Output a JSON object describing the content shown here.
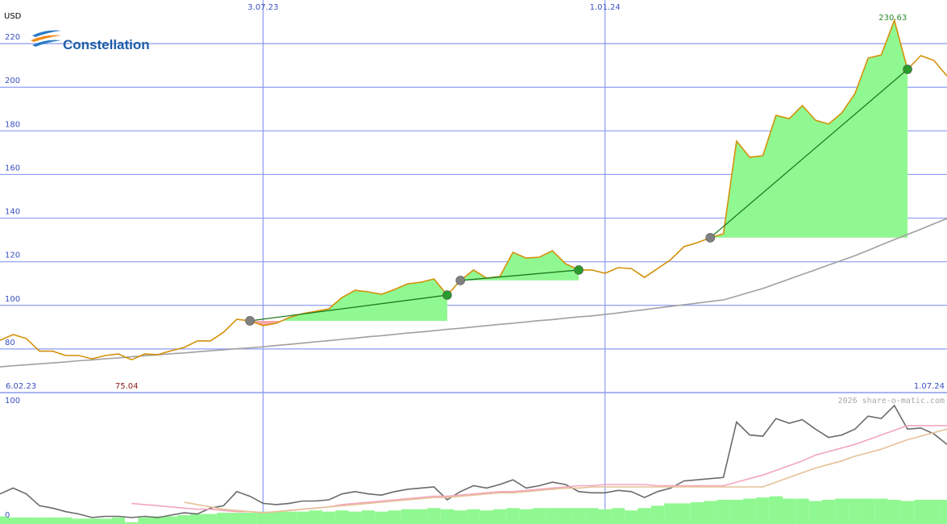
{
  "chart_data": [
    {
      "type": "line",
      "logo": "Constellation",
      "ylabel": "USD",
      "categories": [
        "6.02.23",
        null,
        null,
        null,
        null,
        null,
        null,
        null,
        null,
        null,
        null,
        null,
        null,
        null,
        null,
        null,
        null,
        null,
        null,
        null,
        "3.07.23",
        null,
        null,
        null,
        null,
        null,
        null,
        null,
        null,
        null,
        null,
        null,
        null,
        null,
        null,
        null,
        null,
        null,
        null,
        null,
        null,
        null,
        null,
        null,
        null,
        null,
        "1.01.24",
        null,
        null,
        null,
        null,
        null,
        null,
        null,
        null,
        null,
        null,
        null,
        null,
        null,
        null,
        null,
        null,
        null,
        null,
        null,
        null,
        null,
        null,
        null,
        null,
        null,
        "1.07.24"
      ],
      "ylim": [
        60,
        240
      ],
      "yticks": [
        80,
        100,
        120,
        140,
        160,
        180,
        200,
        220
      ],
      "grid": true,
      "grid_color": "#8c9cf0",
      "tick_color": "#3a4fc0",
      "gain_color": "#90f890",
      "loss_color": "#f7a8a8",
      "max_color": "#2a8a2a",
      "min_color": "#8b1a1a",
      "series": [
        {
          "color": "#d4900a",
          "values": [
            84,
            86.6,
            84.8,
            79,
            79,
            77,
            77,
            75.5,
            77,
            77.7,
            75.04,
            77.7,
            77.4,
            79.2,
            80.7,
            83.7,
            83.7,
            87.7,
            93.6,
            92.9,
            90.7,
            91.8,
            94.4,
            96.2,
            97.3,
            98.4,
            103.6,
            106.9,
            106.2,
            105.1,
            107.3,
            109.9,
            110.6,
            112.1,
            104.7,
            111.4,
            116.2,
            112.5,
            113.2,
            124.3,
            121.7,
            122.1,
            125,
            119.1,
            116.2,
            116.2,
            114.7,
            117.3,
            116.9,
            112.8,
            116.9,
            121,
            126.9,
            128.7,
            131,
            132.8,
            175.3,
            167.9,
            168.6,
            187.1,
            185.6,
            191.6,
            184.9,
            183.1,
            188.2,
            197.1,
            213.4,
            214.8,
            230.63,
            208.2,
            214.5,
            212.3,
            205.2
          ]
        },
        {
          "color": "#a0a0a0",
          "values": [
            71.8,
            72.3,
            72.7,
            73.2,
            73.6,
            74.1,
            74.6,
            75,
            75.5,
            75.9,
            76.4,
            76.9,
            77.3,
            77.8,
            78.2,
            78.7,
            79.2,
            79.6,
            80.1,
            80.5,
            81,
            81.6,
            82.1,
            82.7,
            83.3,
            83.8,
            84.4,
            85,
            85.6,
            86.1,
            86.7,
            87.3,
            87.8,
            88.4,
            89,
            89.5,
            90.1,
            90.7,
            91.3,
            91.8,
            92.4,
            93,
            93.5,
            94.1,
            94.7,
            95.2,
            95.8,
            96.5,
            97.3,
            98,
            98.8,
            99.5,
            100.3,
            101,
            101.8,
            102.5,
            104.2,
            106,
            107.7,
            109.9,
            112,
            114.2,
            116.3,
            118.5,
            120.6,
            122.8,
            125.2,
            127.7,
            130.1,
            132.5,
            134.9,
            137.4,
            139.8
          ]
        },
        {
          "color": "#808080",
          "role": "entry",
          "values": [
            null,
            null,
            null,
            null,
            null,
            null,
            null,
            null,
            null,
            null,
            null,
            null,
            null,
            null,
            null,
            null,
            null,
            null,
            null,
            92.9,
            null,
            null,
            null,
            null,
            null,
            null,
            null,
            null,
            null,
            null,
            null,
            null,
            null,
            null,
            null,
            111.4,
            null,
            null,
            null,
            null,
            null,
            null,
            null,
            null,
            null,
            null,
            null,
            null,
            null,
            null,
            null,
            null,
            null,
            null,
            131,
            null,
            null,
            null,
            null,
            null,
            null,
            null,
            null,
            null,
            null,
            null,
            null,
            null,
            null,
            null,
            null,
            null,
            null
          ]
        },
        {
          "color": "#2a9a2a",
          "role": "exit",
          "values": [
            null,
            null,
            null,
            null,
            null,
            null,
            null,
            null,
            null,
            null,
            null,
            null,
            null,
            null,
            null,
            null,
            null,
            null,
            null,
            null,
            null,
            null,
            null,
            null,
            null,
            null,
            null,
            null,
            null,
            null,
            null,
            null,
            null,
            null,
            104.7,
            null,
            null,
            null,
            null,
            null,
            null,
            null,
            null,
            null,
            116.2,
            null,
            null,
            null,
            null,
            null,
            null,
            null,
            null,
            null,
            null,
            null,
            null,
            null,
            null,
            null,
            null,
            null,
            null,
            null,
            null,
            null,
            null,
            null,
            null,
            208.2,
            null,
            null,
            null
          ]
        }
      ]
    },
    {
      "type": "line",
      "watermark": "2026 share-o-matic.com",
      "ylim": [
        -5.5,
        106
      ],
      "yticks": [
        0,
        100
      ],
      "tick_color": "#3a4fc0",
      "series": [
        {
          "color": "#90f890",
          "kind": "bar",
          "values": [
            1,
            0,
            0,
            0,
            0,
            0,
            -1,
            -1,
            -1,
            0,
            -4,
            0,
            1,
            1,
            2,
            3,
            3,
            4,
            4,
            4,
            5,
            5,
            5,
            5,
            6,
            5,
            6,
            5,
            6,
            5,
            6,
            7,
            7,
            8,
            7,
            6,
            7,
            6,
            7,
            8,
            7,
            8,
            8,
            8,
            8,
            8,
            7,
            8,
            6,
            8,
            10,
            12,
            12,
            13,
            14,
            15,
            15,
            16,
            17,
            18,
            16,
            16,
            14,
            15,
            16,
            16,
            16,
            16,
            15,
            14,
            15,
            15,
            15
          ]
        },
        {
          "color": "#6a6a6a",
          "values": [
            20,
            25,
            20,
            10,
            8,
            5,
            3,
            0,
            1,
            1,
            0,
            1,
            0,
            2,
            4,
            3,
            8,
            10,
            22,
            18,
            12,
            11,
            12,
            14,
            14,
            15,
            20,
            22,
            20,
            19,
            22,
            24,
            25,
            26,
            15,
            22,
            27,
            25,
            28,
            32,
            25,
            27,
            30,
            28,
            22,
            21,
            21,
            23,
            22,
            17,
            22,
            25,
            31,
            32,
            33,
            34,
            81,
            70,
            69,
            84,
            80,
            83,
            75,
            68,
            70,
            75,
            86,
            84,
            95,
            75,
            76,
            71,
            62
          ]
        },
        {
          "color": "#f4a6bf",
          "values": [
            null,
            null,
            null,
            null,
            null,
            null,
            null,
            null,
            null,
            null,
            12,
            11,
            10,
            9,
            8,
            7,
            7,
            6,
            5,
            5,
            4,
            5,
            6,
            7,
            8,
            9,
            11,
            12,
            13,
            14,
            15,
            16,
            17,
            18,
            18,
            19,
            20,
            21,
            22,
            22,
            23,
            24,
            25,
            26,
            27,
            27,
            28,
            28,
            28,
            28,
            27,
            27,
            27,
            27,
            27,
            27,
            30,
            33,
            36,
            40,
            44,
            48,
            53,
            56,
            59,
            62,
            66,
            70,
            74,
            78,
            78,
            78,
            78
          ]
        },
        {
          "color": "#e5c196",
          "values": [
            null,
            null,
            null,
            null,
            null,
            null,
            null,
            null,
            null,
            null,
            null,
            null,
            null,
            null,
            13,
            11,
            9,
            7,
            6,
            5,
            4,
            5,
            6,
            7,
            8,
            9,
            10,
            11,
            12,
            13,
            14,
            15,
            16,
            17,
            17,
            18,
            19,
            20,
            21,
            21,
            22,
            23,
            24,
            25,
            25,
            26,
            26,
            26,
            26,
            26,
            26,
            26,
            26,
            26,
            26,
            26,
            26,
            26,
            26,
            30,
            34,
            38,
            42,
            45,
            48,
            52,
            55,
            58,
            62,
            66,
            69,
            72,
            75
          ]
        }
      ]
    }
  ]
}
